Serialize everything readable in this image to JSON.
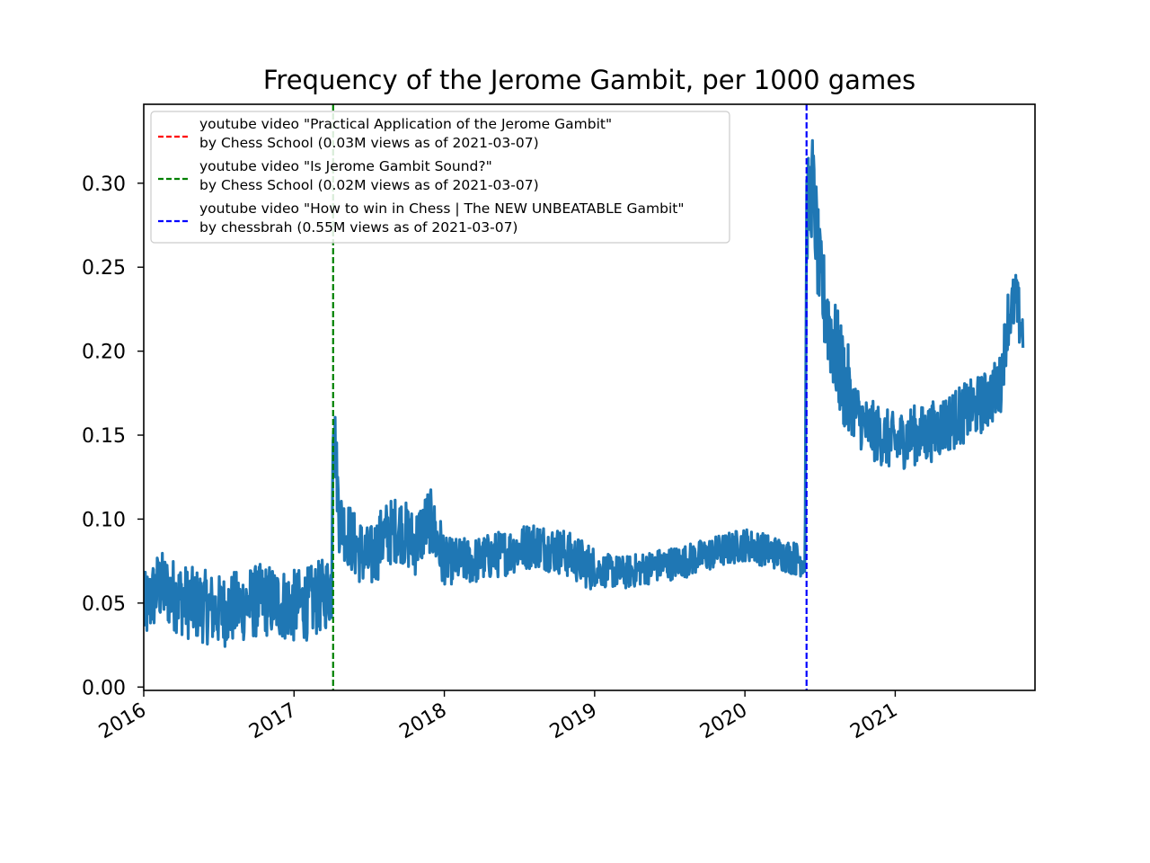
{
  "chart_data": {
    "type": "line",
    "title": "Frequency of the Jerome Gambit, per 1000 games",
    "xlabel": "",
    "ylabel": "",
    "xlim": [
      2016.0,
      2021.93
    ],
    "ylim": [
      -0.002,
      0.347
    ],
    "x_ticks": [
      {
        "value": 2016,
        "label": "2016"
      },
      {
        "value": 2017,
        "label": "2017"
      },
      {
        "value": 2018,
        "label": "2018"
      },
      {
        "value": 2019,
        "label": "2019"
      },
      {
        "value": 2020,
        "label": "2020"
      },
      {
        "value": 2021,
        "label": "2021"
      }
    ],
    "y_ticks": [
      {
        "value": 0.0,
        "label": "0.00"
      },
      {
        "value": 0.05,
        "label": "0.05"
      },
      {
        "value": 0.1,
        "label": "0.10"
      },
      {
        "value": 0.15,
        "label": "0.15"
      },
      {
        "value": 0.2,
        "label": "0.20"
      },
      {
        "value": 0.25,
        "label": "0.25"
      },
      {
        "value": 0.3,
        "label": "0.30"
      }
    ],
    "series": [
      {
        "name": "frequency",
        "color": "#1f77b4",
        "x": [
          2016.0,
          2016.1,
          2016.2,
          2016.3,
          2016.4,
          2016.5,
          2016.6,
          2016.7,
          2016.8,
          2016.9,
          2017.0,
          2017.1,
          2017.2,
          2017.25,
          2017.26,
          2017.3,
          2017.4,
          2017.5,
          2017.6,
          2017.7,
          2017.8,
          2017.9,
          2018.0,
          2018.2,
          2018.4,
          2018.6,
          2018.8,
          2019.0,
          2019.2,
          2019.4,
          2019.6,
          2019.8,
          2020.0,
          2020.2,
          2020.4,
          2020.41,
          2020.45,
          2020.5,
          2020.6,
          2020.7,
          2020.8,
          2020.9,
          2021.0,
          2021.1,
          2021.2,
          2021.3,
          2021.4,
          2021.5,
          2021.6,
          2021.7,
          2021.75,
          2021.8,
          2021.85
        ],
        "values": [
          0.045,
          0.06,
          0.055,
          0.05,
          0.048,
          0.045,
          0.047,
          0.05,
          0.052,
          0.05,
          0.048,
          0.05,
          0.055,
          0.06,
          0.17,
          0.1,
          0.085,
          0.075,
          0.09,
          0.095,
          0.085,
          0.1,
          0.075,
          0.075,
          0.08,
          0.085,
          0.08,
          0.07,
          0.068,
          0.072,
          0.075,
          0.08,
          0.085,
          0.08,
          0.075,
          0.28,
          0.3,
          0.24,
          0.2,
          0.17,
          0.155,
          0.15,
          0.145,
          0.15,
          0.15,
          0.155,
          0.16,
          0.165,
          0.17,
          0.18,
          0.22,
          0.23,
          0.21
        ]
      }
    ],
    "vlines": [
      {
        "x": 2017.26,
        "color": "#008000",
        "style": "dashed"
      },
      {
        "x": 2020.41,
        "color": "#0000ff",
        "style": "dashed"
      }
    ],
    "legend": {
      "placement": "top-left",
      "entries": [
        {
          "color": "#ff0000",
          "line1": "youtube video \"Practical Application of the Jerome Gambit\"",
          "line2": "by Chess School (0.03M views as of 2021-03-07)"
        },
        {
          "color": "#008000",
          "line1": "youtube video \"Is Jerome Gambit Sound?\"",
          "line2": "by Chess School (0.02M views as of 2021-03-07)"
        },
        {
          "color": "#0000ff",
          "line1": "youtube video \"How to win in Chess | The NEW UNBEATABLE Gambit\"",
          "line2": "by chessbrah (0.55M views as of 2021-03-07)"
        }
      ]
    }
  }
}
